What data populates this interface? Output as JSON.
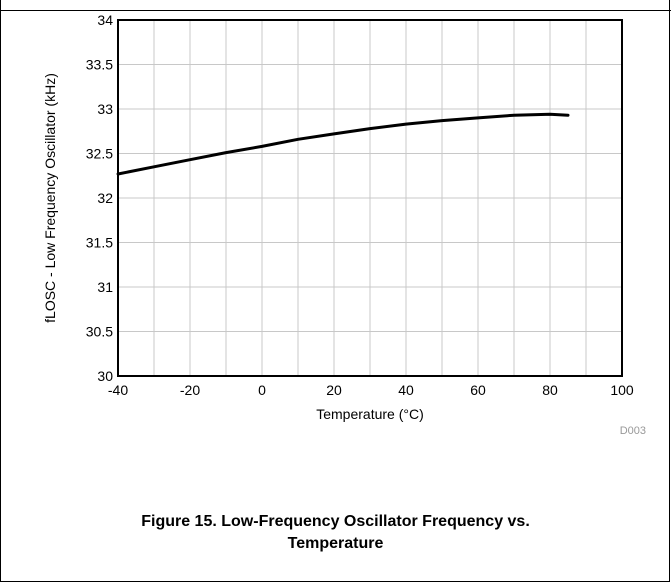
{
  "figure": {
    "caption_line1": "Figure 15. Low-Frequency Oscillator Frequency vs.",
    "caption_line2": "Temperature",
    "ref_code": "D003"
  },
  "chart_data": {
    "type": "line",
    "xlabel": "Temperature (°C)",
    "ylabel": "fLOSC - Low Frequency Oscillator (kHz)",
    "xlim": [
      -40,
      100
    ],
    "ylim": [
      30,
      34
    ],
    "x_ticks": [
      -40,
      -20,
      0,
      20,
      40,
      60,
      80,
      100
    ],
    "x_tick_labels": [
      "-40",
      "-20",
      "0",
      "20",
      "40",
      "60",
      "80",
      "100"
    ],
    "y_ticks": [
      30,
      30.5,
      31,
      31.5,
      32,
      32.5,
      33,
      33.5,
      34
    ],
    "y_tick_labels": [
      "30",
      "30.5",
      "31",
      "31.5",
      "32",
      "32.5",
      "33",
      "33.5",
      "34"
    ],
    "grid": true,
    "series": [
      {
        "color": "#000000",
        "x": [
          -40,
          -30,
          -20,
          -10,
          0,
          10,
          20,
          30,
          40,
          50,
          60,
          70,
          80,
          85
        ],
        "y": [
          32.27,
          32.35,
          32.43,
          32.51,
          32.58,
          32.66,
          32.72,
          32.78,
          32.83,
          32.87,
          32.9,
          32.93,
          32.94,
          32.93
        ]
      }
    ]
  }
}
